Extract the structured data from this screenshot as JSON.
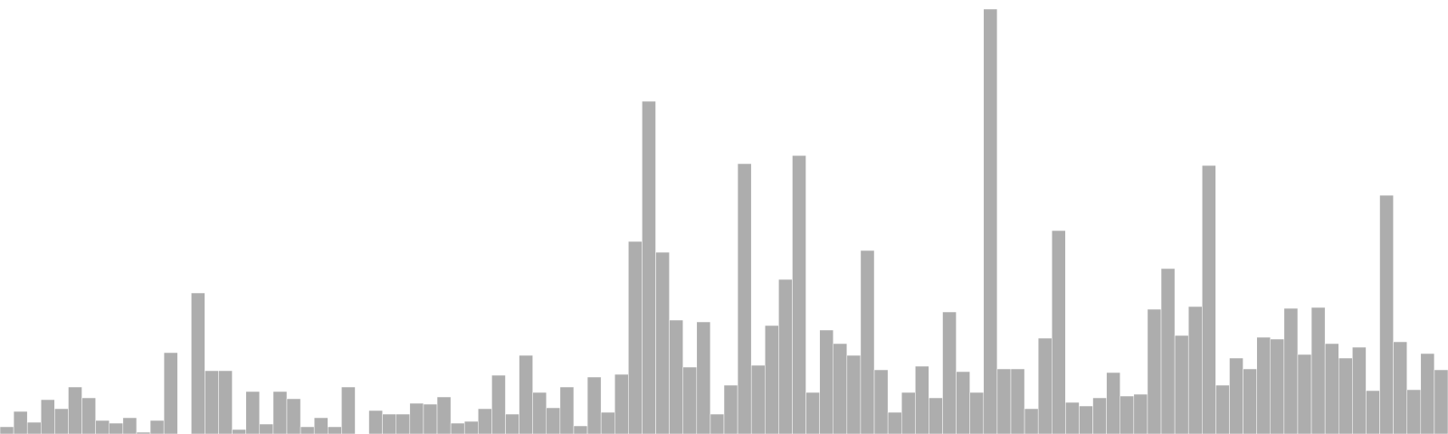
{
  "chart_data": {
    "type": "bar",
    "title": "",
    "xlabel": "",
    "ylabel": "",
    "grid": false,
    "legend": false,
    "ylim": [
      0,
      480
    ],
    "bar_color": "#adadad",
    "values": [
      8,
      25,
      13,
      38,
      28,
      52,
      40,
      15,
      12,
      18,
      2,
      15,
      90,
      0,
      156,
      70,
      70,
      5,
      47,
      11,
      47,
      39,
      8,
      18,
      8,
      52,
      0,
      26,
      22,
      22,
      34,
      33,
      41,
      12,
      14,
      28,
      65,
      22,
      87,
      46,
      29,
      52,
      9,
      63,
      24,
      66,
      213,
      368,
      201,
      126,
      74,
      124,
      22,
      54,
      299,
      76,
      120,
      171,
      308,
      46,
      115,
      100,
      87,
      203,
      71,
      24,
      46,
      75,
      40,
      135,
      69,
      46,
      470,
      72,
      72,
      28,
      106,
      225,
      35,
      31,
      40,
      68,
      42,
      44,
      138,
      183,
      109,
      141,
      297,
      54,
      84,
      72,
      107,
      105,
      139,
      88,
      140,
      100,
      84,
      96,
      48,
      264,
      102,
      49,
      89,
      71
    ]
  }
}
